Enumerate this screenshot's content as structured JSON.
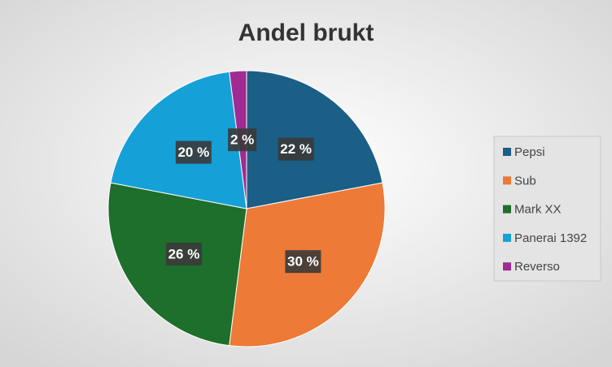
{
  "chart_data": {
    "type": "pie",
    "title": "Andel brukt",
    "categories": [
      "Pepsi",
      "Sub",
      "Mark XX",
      "Panerai 1392",
      "Reverso"
    ],
    "values": [
      22,
      30,
      26,
      20,
      2
    ],
    "value_labels": [
      "22 %",
      "30 %",
      "26 %",
      "20 %",
      "2 %"
    ],
    "colors": [
      "#1b5e86",
      "#ed7a36",
      "#1e6e2c",
      "#16a0d8",
      "#a02b93"
    ],
    "legend": "right"
  }
}
